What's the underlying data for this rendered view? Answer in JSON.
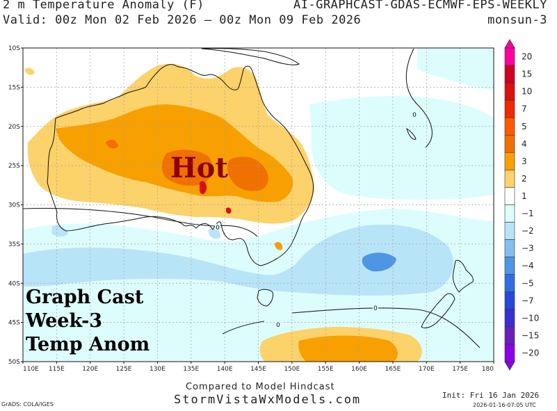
{
  "header": {
    "title": "2 m Temperature Anomaly (F)",
    "model": "AI-GRAPHCAST-GDAS-ECMWF-EPS-WEEKLY",
    "valid": "Valid: 00z Mon 02 Feb 2026 — 00z Mon 09 Feb 2026",
    "region": "monsun-3"
  },
  "map": {
    "lat_labels": [
      "10S",
      "15S",
      "20S",
      "25S",
      "30S",
      "35S",
      "40S",
      "45S",
      "50S"
    ],
    "lon_labels": [
      "110E",
      "115E",
      "120E",
      "125E",
      "130E",
      "135E",
      "140E",
      "145E",
      "150E",
      "155E",
      "160E",
      "165E",
      "170E",
      "175E",
      "180"
    ],
    "contour_labels": [
      "0",
      "0",
      "0",
      "0"
    ],
    "annotation_hot": "Hot",
    "annotation_lines": [
      "Graph Cast",
      "Week-3",
      "Temp Anom"
    ]
  },
  "legend": {
    "levels": [
      {
        "label": "20",
        "color": "#ff00a0"
      },
      {
        "label": "15",
        "color": "#d10020"
      },
      {
        "label": "10",
        "color": "#dc1010"
      },
      {
        "label": "7",
        "color": "#f02800"
      },
      {
        "label": "5",
        "color": "#ff5a00"
      },
      {
        "label": "4",
        "color": "#f07000"
      },
      {
        "label": "3",
        "color": "#f7a000"
      },
      {
        "label": "2",
        "color": "#fcd26a"
      },
      {
        "label": "1",
        "color": "#ffffff"
      },
      {
        "label": "−1",
        "color": "#ddfdfd"
      },
      {
        "label": "−2",
        "color": "#b8e4f8"
      },
      {
        "label": "−3",
        "color": "#82bff0"
      },
      {
        "label": "−4",
        "color": "#4e95e4"
      },
      {
        "label": "−5",
        "color": "#2f6ee0"
      },
      {
        "label": "−7",
        "color": "#2846d8"
      },
      {
        "label": "−10",
        "color": "#3a2ed0"
      },
      {
        "label": "−15",
        "color": "#6a20b8"
      },
      {
        "label": "−20",
        "color": "#8c00e8"
      }
    ]
  },
  "footer": {
    "compared": "Compared to Model Hindcast",
    "site": "StormVistaWxModels.com",
    "grads": "GrADS: COLA/IGES",
    "init": "Init: Fri 16 Jan 2026",
    "stamp": "2026-01-16-07:05 UTC"
  },
  "colors": {
    "warm_light": "#fcd26a",
    "warm_mid": "#f7a000",
    "warm_dark": "#f07000",
    "hot_red": "#dc1010",
    "cool_light": "#ddfdfd",
    "cool_mid": "#b8e4f8",
    "cool_dark": "#82bff0",
    "cool_deep": "#4e95e4",
    "annotation_hot": "#8b0000",
    "annotation_text": "#000000"
  }
}
